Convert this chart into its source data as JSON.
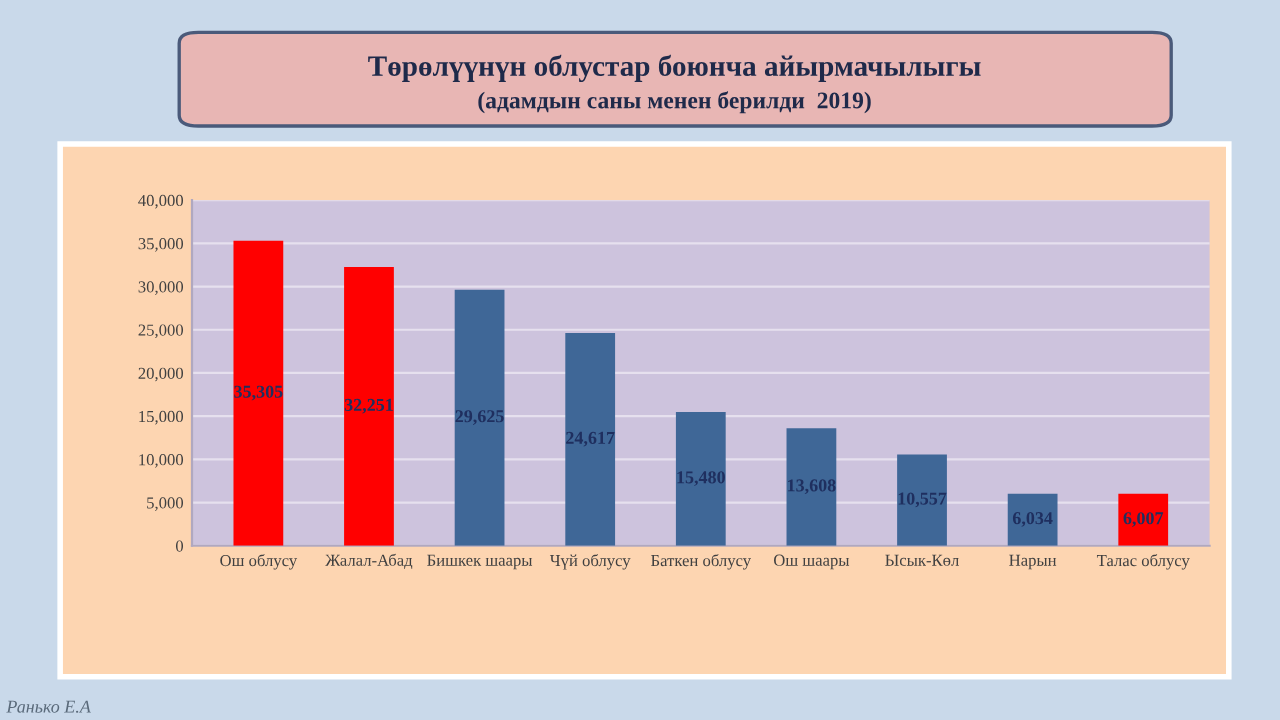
{
  "chart_data": {
    "type": "bar",
    "title": "Төрөлүүнүн облустар боюнча айырмачылыгы",
    "subtitle": "(адамдын саны менен берилди  2019)",
    "categories": [
      "Ош облусу",
      "Жалал-Абад",
      "Бишкек шаары",
      "Чүй облусу",
      "Баткен облусу",
      "Ош шаары",
      "Ысык-Көл",
      "Нарын",
      "Талас облусу"
    ],
    "values": [
      35305,
      32251,
      29625,
      24617,
      15480,
      13608,
      10557,
      6034,
      6007
    ],
    "colors": [
      "#ff0000",
      "#ff0000",
      "#3f6797",
      "#3f6797",
      "#3f6797",
      "#3f6797",
      "#3f6797",
      "#3f6797",
      "#ff0000"
    ],
    "value_labels": [
      "35,305",
      "32,251",
      "29,625",
      "24,617",
      "15,480",
      "13,608",
      "10,557",
      "6,034",
      "6,007"
    ],
    "ylim": [
      0,
      40000
    ],
    "yticks": [
      {
        "value": 0,
        "label": "0"
      },
      {
        "value": 5000,
        "label": "5,000"
      },
      {
        "value": 10000,
        "label": "10,000"
      },
      {
        "value": 15000,
        "label": "15,000"
      },
      {
        "value": 20000,
        "label": "20,000"
      },
      {
        "value": 25000,
        "label": "25,000"
      },
      {
        "value": 30000,
        "label": "30,000"
      },
      {
        "value": 35000,
        "label": "35,000"
      },
      {
        "value": 40000,
        "label": "40,000"
      }
    ],
    "grid": "y",
    "annotations": [
      "Ранько Е.А"
    ]
  }
}
